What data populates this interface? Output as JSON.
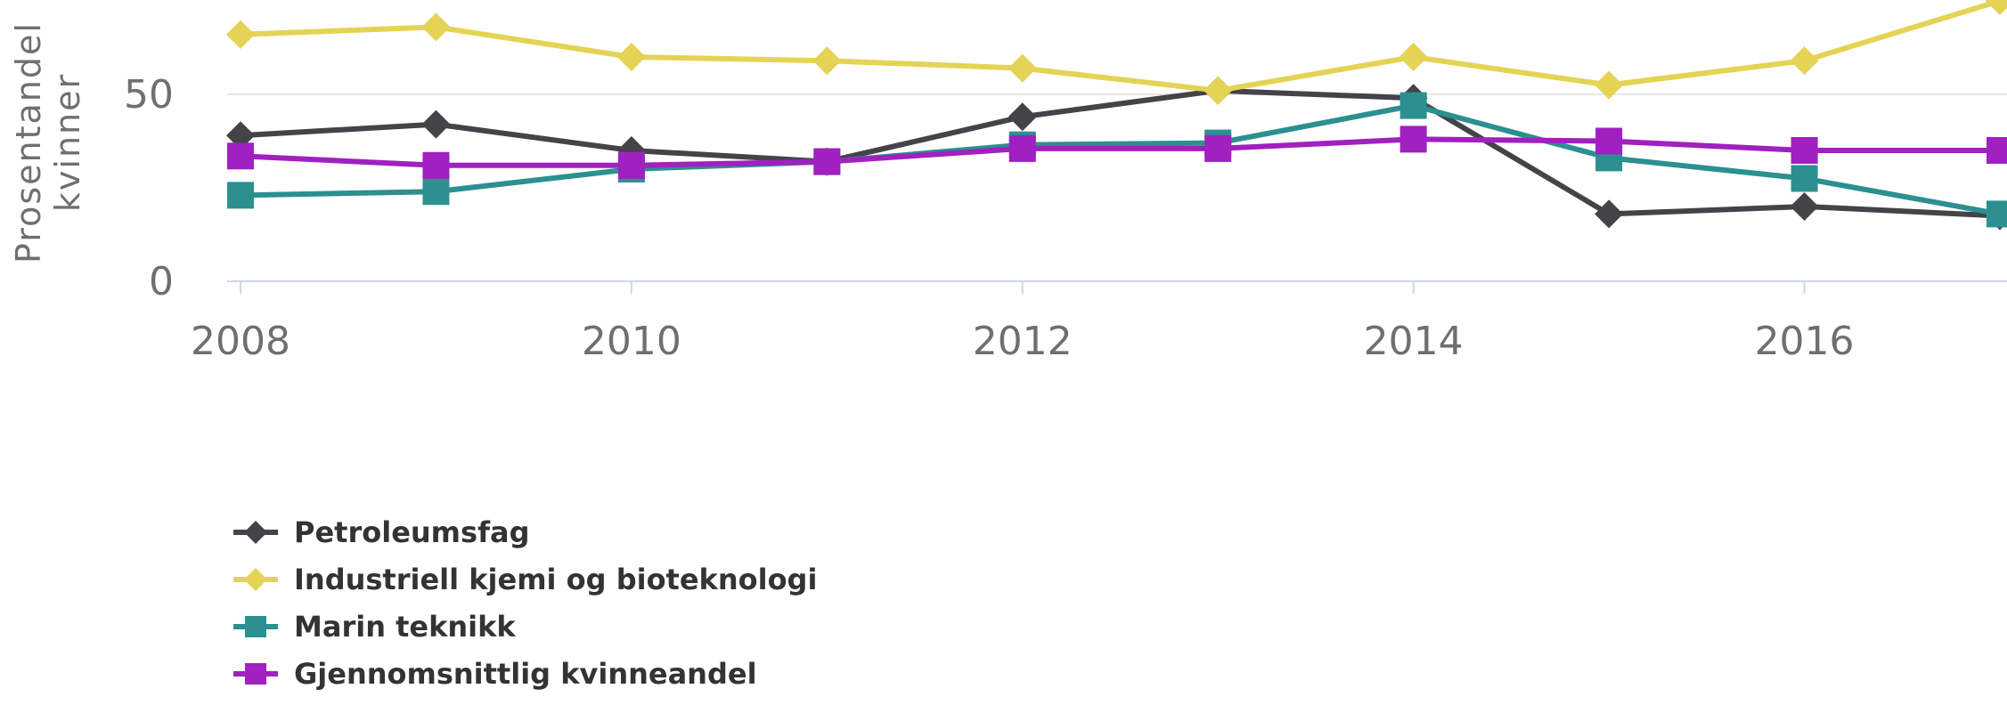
{
  "chart_data": {
    "type": "line",
    "xlabel": "",
    "ylabel": "Prosentandel kvinner",
    "ylabel_lines": [
      "Prosentandel",
      "kvinner"
    ],
    "x": [
      2008,
      2009,
      2010,
      2011,
      2012,
      2013,
      2014,
      2015,
      2016,
      2017
    ],
    "x_ticks": [
      2008,
      2010,
      2012,
      2014,
      2016
    ],
    "y_ticks": [
      0,
      50
    ],
    "xlim": [
      2008,
      2017
    ],
    "ylim": [
      0,
      100
    ],
    "grid": "horizontal",
    "legend_position": "bottom-left",
    "series": [
      {
        "name": "Petroleumsfag",
        "color": "#434348",
        "marker": "diamond",
        "values": [
          39,
          42,
          35,
          32,
          44,
          51,
          49,
          18,
          20,
          17.5
        ]
      },
      {
        "name": "Industriell kjemi og bioteknologi",
        "color": "#e4d354",
        "marker": "diamond",
        "values": [
          66,
          68,
          60,
          59,
          57,
          51,
          60,
          52.5,
          59,
          75
        ]
      },
      {
        "name": "Marin teknikk",
        "color": "#2b908f",
        "marker": "square",
        "values": [
          23,
          24,
          30,
          32,
          36.5,
          37,
          47,
          33,
          27.5,
          18
        ]
      },
      {
        "name": "Gjennomsnittlig kvinneandel",
        "color": "#a020c0",
        "marker": "square",
        "values": [
          33.5,
          31,
          31,
          32,
          35.5,
          35.5,
          38,
          37.5,
          35,
          35
        ]
      }
    ]
  }
}
